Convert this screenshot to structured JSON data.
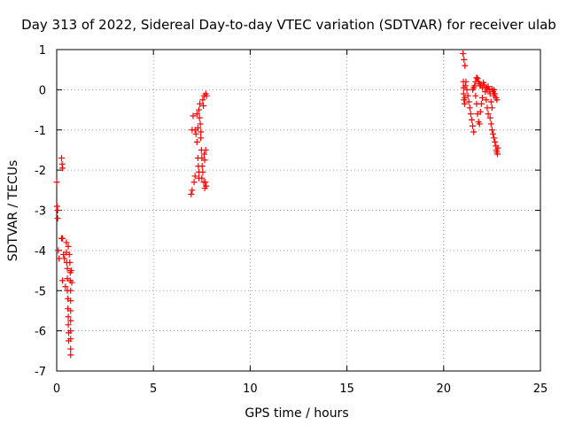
{
  "chart_data": {
    "type": "scatter",
    "title": "Day 313 of 2022, Sidereal Day-to-day VTEC variation (SDTVAR) for receiver ulab",
    "xlabel": "GPS time / hours",
    "ylabel": "SDTVAR / TECUs",
    "xlim": [
      0,
      25
    ],
    "ylim": [
      -7,
      1
    ],
    "xticks": [
      0,
      5,
      10,
      15,
      20,
      25
    ],
    "yticks": [
      1,
      0,
      -1,
      -2,
      -3,
      -4,
      -5,
      -6,
      -7
    ],
    "grid": true,
    "marker": "+",
    "colors": {
      "series": "#ff0000",
      "grid": "#a0a0a0",
      "axis": "#000000"
    },
    "series": [
      {
        "name": "SDTVAR",
        "points": [
          [
            0.0,
            -2.3
          ],
          [
            0.02,
            -2.9
          ],
          [
            0.05,
            -3.0
          ],
          [
            0.05,
            -3.2
          ],
          [
            0.08,
            -4.0
          ],
          [
            0.12,
            -4.2
          ],
          [
            0.25,
            -1.7
          ],
          [
            0.28,
            -1.85
          ],
          [
            0.3,
            -1.95
          ],
          [
            0.25,
            -3.7
          ],
          [
            0.3,
            -3.7
          ],
          [
            0.3,
            -4.75
          ],
          [
            0.35,
            -4.1
          ],
          [
            0.4,
            -4.2
          ],
          [
            0.45,
            -4.9
          ],
          [
            0.5,
            -3.8
          ],
          [
            0.5,
            -4.05
          ],
          [
            0.52,
            -4.3
          ],
          [
            0.55,
            -4.45
          ],
          [
            0.55,
            -4.7
          ],
          [
            0.55,
            -5.0
          ],
          [
            0.58,
            -5.2
          ],
          [
            0.58,
            -5.45
          ],
          [
            0.6,
            -5.65
          ],
          [
            0.6,
            -5.85
          ],
          [
            0.62,
            -6.05
          ],
          [
            0.62,
            -6.25
          ],
          [
            0.6,
            -3.9
          ],
          [
            0.65,
            -4.1
          ],
          [
            0.68,
            -4.3
          ],
          [
            0.7,
            -4.55
          ],
          [
            0.7,
            -4.75
          ],
          [
            0.72,
            -5.0
          ],
          [
            0.72,
            -5.25
          ],
          [
            0.72,
            -5.5
          ],
          [
            0.72,
            -5.75
          ],
          [
            0.72,
            -6.0
          ],
          [
            0.72,
            -6.2
          ],
          [
            0.72,
            -6.45
          ],
          [
            0.72,
            -6.6
          ],
          [
            0.75,
            -4.5
          ],
          [
            0.78,
            -4.8
          ],
          [
            6.95,
            -2.6
          ],
          [
            7.0,
            -2.5
          ],
          [
            7.0,
            -1.0
          ],
          [
            7.05,
            -0.65
          ],
          [
            7.1,
            -2.3
          ],
          [
            7.15,
            -2.15
          ],
          [
            7.15,
            -1.0
          ],
          [
            7.2,
            -1.1
          ],
          [
            7.25,
            -1.3
          ],
          [
            7.25,
            -0.6
          ],
          [
            7.3,
            -0.95
          ],
          [
            7.3,
            -1.7
          ],
          [
            7.32,
            -1.9
          ],
          [
            7.35,
            -2.05
          ],
          [
            7.35,
            -2.2
          ],
          [
            7.35,
            -0.5
          ],
          [
            7.38,
            -0.7
          ],
          [
            7.4,
            -0.35
          ],
          [
            7.42,
            -0.85
          ],
          [
            7.45,
            -1.05
          ],
          [
            7.45,
            -1.2
          ],
          [
            7.48,
            -1.5
          ],
          [
            7.5,
            -1.7
          ],
          [
            7.5,
            -2.2
          ],
          [
            7.52,
            -1.9
          ],
          [
            7.55,
            -2.05
          ],
          [
            7.55,
            -0.25
          ],
          [
            7.58,
            -0.4
          ],
          [
            7.6,
            -2.3
          ],
          [
            7.62,
            -0.15
          ],
          [
            7.62,
            -1.6
          ],
          [
            7.65,
            -1.75
          ],
          [
            7.65,
            -2.45
          ],
          [
            7.68,
            -2.3
          ],
          [
            7.7,
            -0.1
          ],
          [
            7.7,
            -1.5
          ],
          [
            7.72,
            -2.4
          ],
          [
            7.75,
            -0.15
          ],
          [
            21.0,
            0.9
          ],
          [
            21.05,
            0.75
          ],
          [
            21.1,
            0.6
          ],
          [
            21.02,
            0.2
          ],
          [
            21.03,
            0.05
          ],
          [
            21.03,
            -0.1
          ],
          [
            21.05,
            -0.25
          ],
          [
            21.08,
            -0.35
          ],
          [
            21.1,
            -0.2
          ],
          [
            21.12,
            0.1
          ],
          [
            21.15,
            0.2
          ],
          [
            21.2,
            0.0
          ],
          [
            21.25,
            -0.15
          ],
          [
            21.3,
            -0.3
          ],
          [
            21.35,
            -0.45
          ],
          [
            21.4,
            -0.6
          ],
          [
            21.45,
            -0.75
          ],
          [
            21.5,
            -0.9
          ],
          [
            21.55,
            -1.05
          ],
          [
            21.5,
            0.0
          ],
          [
            21.55,
            0.05
          ],
          [
            21.6,
            0.1
          ],
          [
            21.65,
            -0.15
          ],
          [
            21.7,
            -0.35
          ],
          [
            21.75,
            -0.6
          ],
          [
            21.65,
            0.2
          ],
          [
            21.7,
            0.3
          ],
          [
            21.75,
            0.28
          ],
          [
            21.8,
            0.2
          ],
          [
            21.85,
            0.15
          ],
          [
            21.9,
            0.1
          ],
          [
            21.8,
            -0.8
          ],
          [
            21.85,
            -0.85
          ],
          [
            21.9,
            -0.55
          ],
          [
            21.95,
            -0.35
          ],
          [
            22.0,
            -0.2
          ],
          [
            22.0,
            0.05
          ],
          [
            22.05,
            0.18
          ],
          [
            22.1,
            0.12
          ],
          [
            22.15,
            -0.05
          ],
          [
            22.2,
            -0.25
          ],
          [
            22.25,
            -0.45
          ],
          [
            22.3,
            -0.6
          ],
          [
            22.2,
            0.05
          ],
          [
            22.25,
            0.0
          ],
          [
            22.3,
            0.08
          ],
          [
            22.35,
            0.0
          ],
          [
            22.4,
            -0.1
          ],
          [
            22.45,
            -0.3
          ],
          [
            22.5,
            -0.45
          ],
          [
            22.5,
            0.02
          ],
          [
            22.55,
            -0.05
          ],
          [
            22.6,
            -0.15
          ],
          [
            22.4,
            -0.7
          ],
          [
            22.45,
            -0.85
          ],
          [
            22.5,
            -1.0
          ],
          [
            22.55,
            -1.1
          ],
          [
            22.6,
            -1.2
          ],
          [
            22.65,
            -1.3
          ],
          [
            22.7,
            -1.4
          ],
          [
            22.72,
            -1.5
          ],
          [
            22.75,
            -1.55
          ],
          [
            22.78,
            -1.6
          ],
          [
            22.8,
            -1.45
          ],
          [
            22.6,
            0.0
          ],
          [
            22.65,
            -0.1
          ],
          [
            22.7,
            -0.2
          ],
          [
            22.75,
            -0.25
          ]
        ]
      }
    ]
  }
}
